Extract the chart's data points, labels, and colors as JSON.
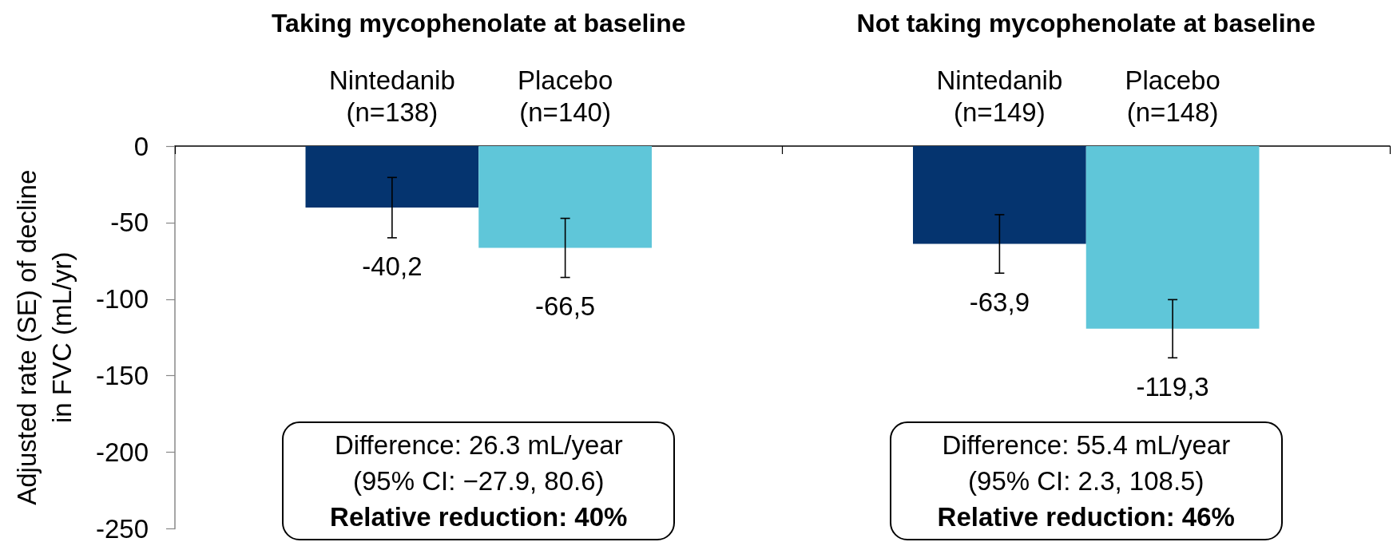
{
  "chart_data": {
    "type": "bar",
    "ylabel": "Adjusted rate (SE) of decline\nin FVC (mL/yr)",
    "categories": [
      "Taking mycophenolate at baseline",
      "Not taking mycophenolate at baseline"
    ],
    "series": [
      {
        "name": "Nintedanib",
        "color": "#05346f",
        "values": [
          -40.2,
          -63.9
        ],
        "errors": [
          19.7,
          19.1
        ],
        "value_labels": [
          "-40,2",
          "-63,9"
        ]
      },
      {
        "name": "Placebo",
        "color": "#5fc6d9",
        "values": [
          -66.5,
          -119.3
        ],
        "errors": [
          19.3,
          19.0
        ],
        "value_labels": [
          "-66,5",
          "-119,3"
        ]
      }
    ],
    "ylim": [
      -250,
      0
    ],
    "yticks": [
      -250,
      -200,
      -150,
      -100,
      -50,
      0
    ],
    "annotations": [
      {
        "text": "(n=138)",
        "x": "Taking mycophenolate at baseline",
        "y": 0
      },
      {
        "text": "(n=140)",
        "x": "Taking mycophenolate at baseline",
        "y": 0
      },
      {
        "text": "(n=149)",
        "x": "Not taking mycophenolate at baseline",
        "y": 0
      },
      {
        "text": "(n=148)",
        "x": "Not taking mycophenolate at baseline",
        "y": 0
      },
      "Difference: 26.3 mL/year",
      "(95% CI: −27.9, 80.6)",
      "Relative reduction: 40%",
      "Difference: 55.4 mL/year",
      "(95% CI: 2.3, 108.5)",
      "Relative reduction: 46%"
    ]
  }
}
